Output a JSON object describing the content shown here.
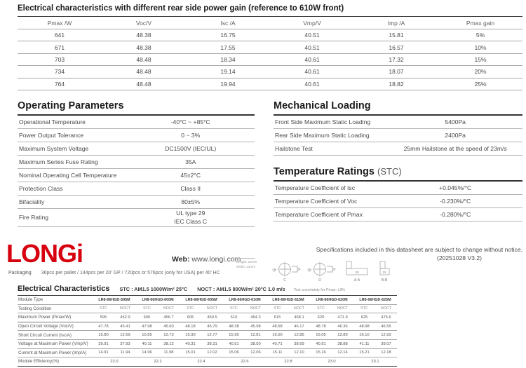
{
  "rear_gain_table": {
    "title": "Electrical characteristics with different rear side power gain (reference to 610W front)",
    "headers": [
      "Pmax /W",
      "Voc/V",
      "Isc /A",
      "Vmp/V",
      "Imp /A",
      "Pmax gain"
    ],
    "rows": [
      [
        "641",
        "48.38",
        "16.75",
        "40.51",
        "15.81",
        "5%"
      ],
      [
        "671",
        "48.38",
        "17.55",
        "40.51",
        "16.57",
        "10%"
      ],
      [
        "703",
        "48.48",
        "18.34",
        "40.61",
        "17.32",
        "15%"
      ],
      [
        "734",
        "48.48",
        "19.14",
        "40.61",
        "18.07",
        "20%"
      ],
      [
        "764",
        "48.48",
        "19.94",
        "40.61",
        "18.82",
        "25%"
      ]
    ]
  },
  "operating_parameters": {
    "title": "Operating Parameters",
    "rows": [
      {
        "label": "Operational Temperature",
        "value": "-40°C ~ +85°C"
      },
      {
        "label": "Power Output Tolerance",
        "value": "0 ~ 3%"
      },
      {
        "label": "Maximum System Voltage",
        "value": "DC1500V (IEC/UL)"
      },
      {
        "label": "Maximum Series Fuse Rating",
        "value": "35A"
      },
      {
        "label": "Nominal Operating Cell Temperature",
        "value": "45±2°C"
      },
      {
        "label": "Protection Class",
        "value": "Class II"
      },
      {
        "label": "Bifaciality",
        "value": "80±5%"
      },
      {
        "label": "Fire Rating",
        "value": "UL type 29",
        "value2": "IEC Class C"
      }
    ]
  },
  "mechanical_loading": {
    "title": "Mechanical Loading",
    "rows": [
      {
        "label": "Front Side Maximum Static Loading",
        "value": "5400Pa"
      },
      {
        "label": "Rear Side Maximum Static Loading",
        "value": "2400Pa"
      },
      {
        "label": "Hailstone Test",
        "value": "25mm Hailstone at the speed of 23m/s"
      }
    ]
  },
  "temperature_ratings": {
    "title": "Temperature Ratings",
    "title_suffix": "(STC)",
    "rows": [
      {
        "label": "Temperature Coefficient of  Isc",
        "value": "+0.045%/°C"
      },
      {
        "label": "Temperature Coefficient of  Voc",
        "value": "-0.230%/°C"
      },
      {
        "label": "Temperature Coefficient of  Pmax",
        "value": "-0.280%/°C"
      }
    ]
  },
  "footer": {
    "logo_text": "LONGi",
    "web_label": "Web:",
    "web_url": "www.longi.com",
    "packaging_label": "Packaging",
    "packaging_value": "36pcs per pallet / 144pcs per 20' GP / 720pcs or 576pcs (only for USA) per 40' HC",
    "tolerance_length": "Length:  ±2mm",
    "tolerance_width": "Width:  ±2mm",
    "notice": "Specifications included in this datasheet are subject to change without notice.",
    "version": "(20251028 V3.2)",
    "drawings": {
      "labels": [
        "C",
        "D",
        "A-A",
        "B-B"
      ],
      "dim_a": "30",
      "dim_b": "15"
    }
  },
  "electrical_characteristics": {
    "title": "Electrical Characteristics",
    "stc_condition": "STC : AM1.5   1000W/m²   25°C",
    "noct_condition": "NOCT : AM1.5   800W/m²   20°C   1.0 m/s",
    "uncertainty": "Test uncertainty for Pmax: ±3%",
    "row_labels": {
      "module_type": "Module Type",
      "testing_condition": "Testing Condition",
      "pmax": "Maximum Power (Pmax/W)",
      "voc": "Open Circuit Voltage (Voc/V)",
      "isc": "Short Circuit Current (Isc/A)",
      "vmp": "Voltage at Maximum Power (Vmp/V)",
      "imp": "Current at Maximum Power (Imp/A)",
      "efficiency": "Module Efficiency(%)"
    },
    "condition_labels": [
      "STC",
      "NOCT"
    ],
    "modules": [
      {
        "type": "LR8-66HGD-595M",
        "stc": {
          "pmax": "595",
          "voc": "47.78",
          "isc": "15.80",
          "vmp": "39.91",
          "imp": "14.91"
        },
        "noct": {
          "pmax": "452.9",
          "voc": "45.41",
          "isc": "12.69",
          "vmp": "37.93",
          "imp": "11.94"
        },
        "efficiency": "22.0"
      },
      {
        "type": "LR8-66HGD-600M",
        "stc": {
          "pmax": "600",
          "voc": "47.98",
          "isc": "15.85",
          "vmp": "40.11",
          "imp": "14.96"
        },
        "noct": {
          "pmax": "456.7",
          "voc": "45.60",
          "isc": "12.73",
          "vmp": "38.12",
          "imp": "11.98"
        },
        "efficiency": "22.2"
      },
      {
        "type": "LR8-66HGD-605M",
        "stc": {
          "pmax": "605",
          "voc": "48.18",
          "isc": "15.90",
          "vmp": "40.31",
          "imp": "15.01"
        },
        "noct": {
          "pmax": "460.5",
          "voc": "45.79",
          "isc": "12.77",
          "vmp": "38.31",
          "imp": "12.02"
        },
        "efficiency": "22.4"
      },
      {
        "type": "LR8-66HGD-610M",
        "stc": {
          "pmax": "610",
          "voc": "48.38",
          "isc": "15.95",
          "vmp": "40.51",
          "imp": "15.06"
        },
        "noct": {
          "pmax": "464.3",
          "voc": "45.98",
          "isc": "12.81",
          "vmp": "38.50",
          "imp": "12.06"
        },
        "efficiency": "22.6"
      },
      {
        "type": "LR8-66HGD-615M",
        "stc": {
          "pmax": "615",
          "voc": "48.58",
          "isc": "16.00",
          "vmp": "40.71",
          "imp": "15.11"
        },
        "noct": {
          "pmax": "468.1",
          "voc": "46.17",
          "isc": "12.85",
          "vmp": "38.69",
          "imp": "12.10"
        },
        "efficiency": "22.8"
      },
      {
        "type": "LR8-66HGD-620M",
        "stc": {
          "pmax": "620",
          "voc": "48.78",
          "isc": "16.05",
          "vmp": "40.91",
          "imp": "15.16"
        },
        "noct": {
          "pmax": "471.9",
          "voc": "46.36",
          "isc": "12.89",
          "vmp": "38.88",
          "imp": "12.14"
        },
        "efficiency": "23.0"
      },
      {
        "type": "LR8-66HGD-625M",
        "stc": {
          "pmax": "625",
          "voc": "48.98",
          "isc": "16.10",
          "vmp": "41.11",
          "imp": "15.21"
        },
        "noct": {
          "pmax": "475.6",
          "voc": "46.55",
          "isc": "12.93",
          "vmp": "39.07",
          "imp": "12.18"
        },
        "efficiency": "23.1"
      }
    ]
  },
  "colors": {
    "brand_red": "#d7000f"
  }
}
